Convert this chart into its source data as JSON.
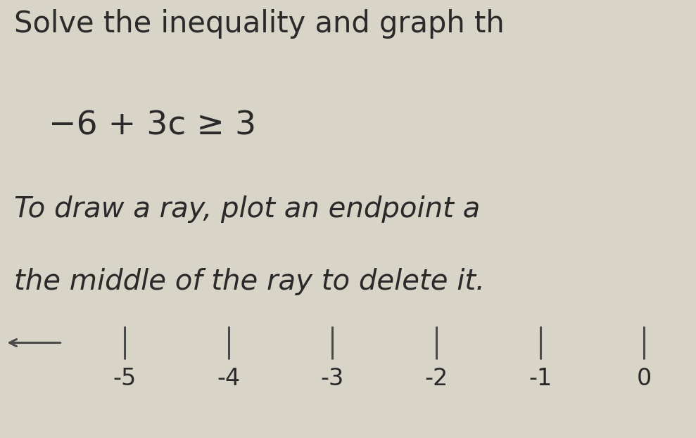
{
  "title_line1": "Solve the inequality and graph th",
  "equation": "−6 + 3c ≥ 3",
  "instruction_line1": "To draw a ray, plot an endpoint a",
  "instruction_line2": "the middle of the ray to delete it.",
  "bg_color": "#d8d5c8",
  "text_color": "#2a2a2a",
  "axis_color": "#4a4a4a",
  "tick_labels": [
    "-5",
    "-4",
    "-3",
    "-2",
    "-1",
    "0"
  ],
  "tick_positions": [
    -5,
    -4,
    -3,
    -2,
    -1,
    0
  ],
  "x_min": -6.2,
  "x_max": 0.5,
  "title_fontsize": 30,
  "equation_fontsize": 34,
  "instruction_fontsize": 29,
  "figure_width": 9.89,
  "figure_height": 6.23,
  "dpi": 100
}
